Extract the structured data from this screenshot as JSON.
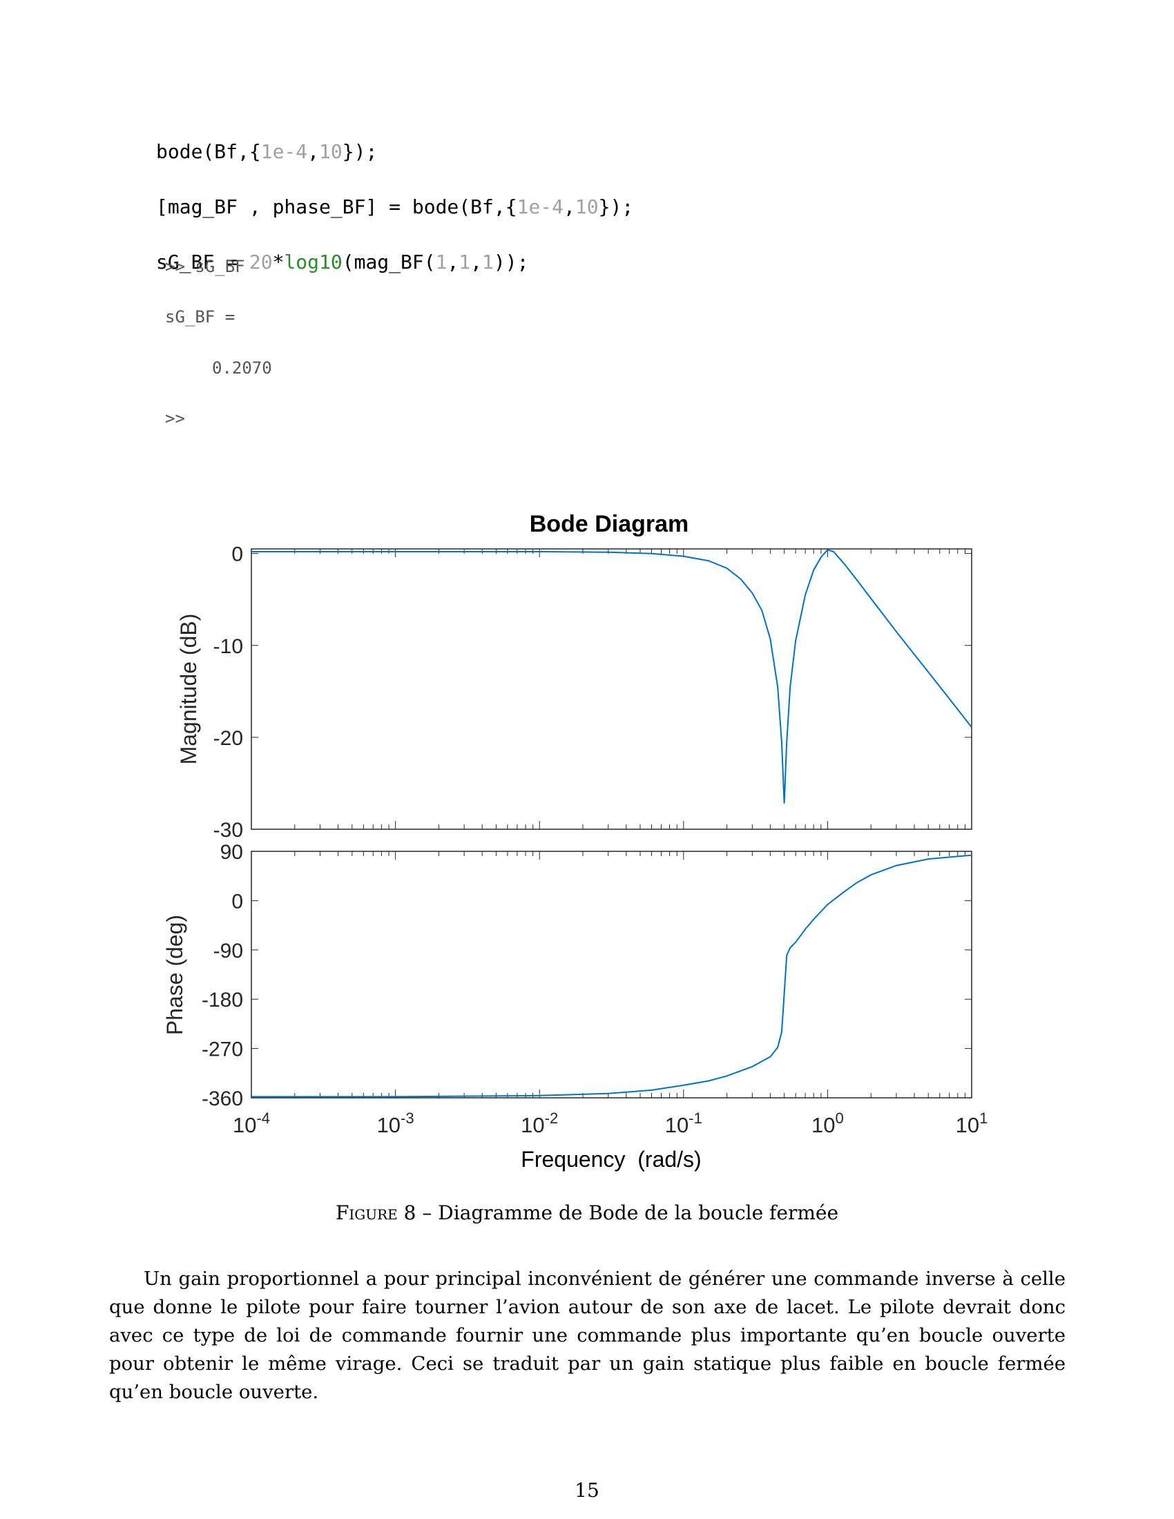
{
  "code": {
    "line1": {
      "a": "bode(Bf,{",
      "n1": "1e-4",
      "b": ",",
      "n2": "10",
      "c": "});"
    },
    "line2": {
      "a": "[mag_BF , phase_BF] = bode(Bf,{",
      "n1": "1e-4",
      "b": ",",
      "n2": "10",
      "c": "});"
    },
    "line3": {
      "a": "sG_BF = ",
      "n1": "20",
      "b": "*",
      "fn": "log10",
      "c": "(mag_BF(",
      "n2": "1",
      "d": ",",
      "n3": "1",
      "e": ",",
      "n4": "1",
      "f": "));"
    }
  },
  "console": {
    "prompt1": ">> sG_BF",
    "assign": "sG_BF =",
    "value": "0.2070",
    "prompt2": ">>"
  },
  "chart_data": {
    "type": "line",
    "title": "Bode Diagram",
    "xlabel": "Frequency  (rad/s)",
    "xscale": "log",
    "xlim": [
      0.0001,
      10
    ],
    "xticks": [
      "10^-4",
      "10^-3",
      "10^-2",
      "10^-1",
      "10^0",
      "10^1"
    ],
    "line_color": "#0072bd",
    "magnitude": {
      "ylabel": "Magnitude (dB)",
      "ylim": [
        -30,
        0.5
      ],
      "yticks": [
        "0",
        "-10",
        "-20",
        "-30"
      ],
      "x": [
        0.0001,
        0.001,
        0.01,
        0.03,
        0.06,
        0.1,
        0.15,
        0.2,
        0.25,
        0.3,
        0.35,
        0.4,
        0.45,
        0.48,
        0.5,
        0.52,
        0.55,
        0.6,
        0.7,
        0.8,
        0.9,
        1.0,
        1.1,
        1.3,
        1.6,
        2,
        3,
        5,
        7,
        10
      ],
      "y": [
        0.2,
        0.2,
        0.2,
        0.15,
        0.0,
        -0.3,
        -0.8,
        -1.6,
        -2.8,
        -4.3,
        -6.2,
        -9.3,
        -14.5,
        -20.5,
        -27.2,
        -20.5,
        -14.5,
        -9.5,
        -4.5,
        -1.8,
        -0.4,
        0.4,
        0.2,
        -1.1,
        -2.9,
        -4.9,
        -8.5,
        -12.9,
        -15.8,
        -18.9
      ]
    },
    "phase": {
      "ylabel": "Phase (deg)",
      "ylim": [
        -360,
        90
      ],
      "yticks": [
        "90",
        "0",
        "-90",
        "-180",
        "-270",
        "-360"
      ],
      "x": [
        0.0001,
        0.001,
        0.01,
        0.03,
        0.06,
        0.1,
        0.15,
        0.2,
        0.3,
        0.4,
        0.45,
        0.48,
        0.49,
        0.5,
        0.51,
        0.52,
        0.55,
        0.6,
        0.7,
        0.8,
        1.0,
        1.3,
        1.6,
        2,
        3,
        5,
        10
      ],
      "y": [
        -358,
        -358,
        -356,
        -352,
        -346,
        -337,
        -329,
        -320,
        -303,
        -285,
        -268,
        -240,
        -205,
        -170,
        -135,
        -100,
        -86,
        -76,
        -52,
        -34,
        -7,
        16,
        33,
        47,
        64,
        76,
        83
      ]
    }
  },
  "caption": {
    "label": "Figure 8",
    "text": " – Diagramme de Bode de la boucle fermée"
  },
  "paragraph": "Un gain proportionnel a pour principal inconvénient de générer une commande inverse à celle que donne le pilote pour faire tourner l’avion autour de son axe de lacet. Le pilote devrait donc avec ce type de loi de commande fournir une commande plus importante qu’en boucle ouverte pour obtenir le même virage. Ceci se traduit par un gain statique plus faible en boucle fermée qu’en boucle ouverte.",
  "page_number": "15"
}
